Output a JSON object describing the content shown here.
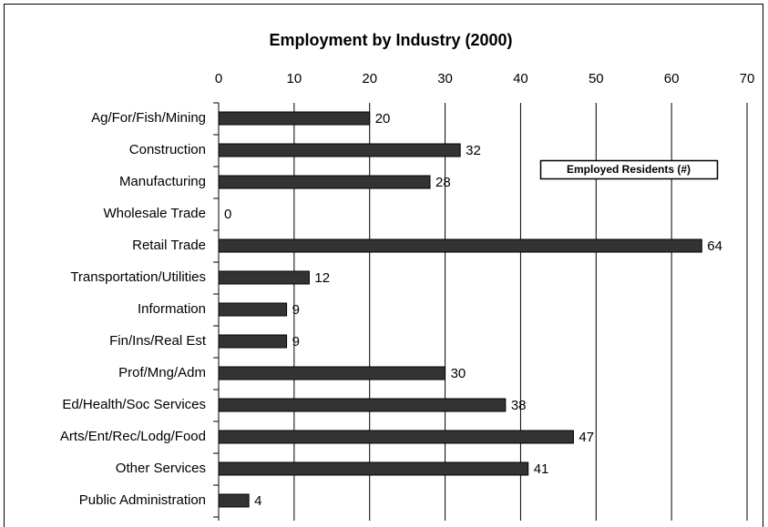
{
  "chart_data": {
    "type": "bar",
    "orientation": "horizontal",
    "title": "Employment by Industry (2000)",
    "categories": [
      "Ag/For/Fish/Mining",
      "Construction",
      "Manufacturing",
      "Wholesale Trade",
      "Retail Trade",
      "Transportation/Utilities",
      "Information",
      "Fin/Ins/Real Est",
      "Prof/Mng/Adm",
      "Ed/Health/Soc Services",
      "Arts/Ent/Rec/Lodg/Food",
      "Other Services",
      "Public Administration"
    ],
    "series": [
      {
        "name": "Employed Residents (#)",
        "color": "#333333",
        "values": [
          20,
          32,
          28,
          0,
          64,
          12,
          9,
          9,
          30,
          38,
          47,
          41,
          4
        ]
      }
    ],
    "xlim": [
      0,
      70
    ],
    "xticks": [
      0,
      10,
      20,
      30,
      40,
      50,
      60,
      70
    ],
    "grid": true,
    "legend": "upper right"
  }
}
